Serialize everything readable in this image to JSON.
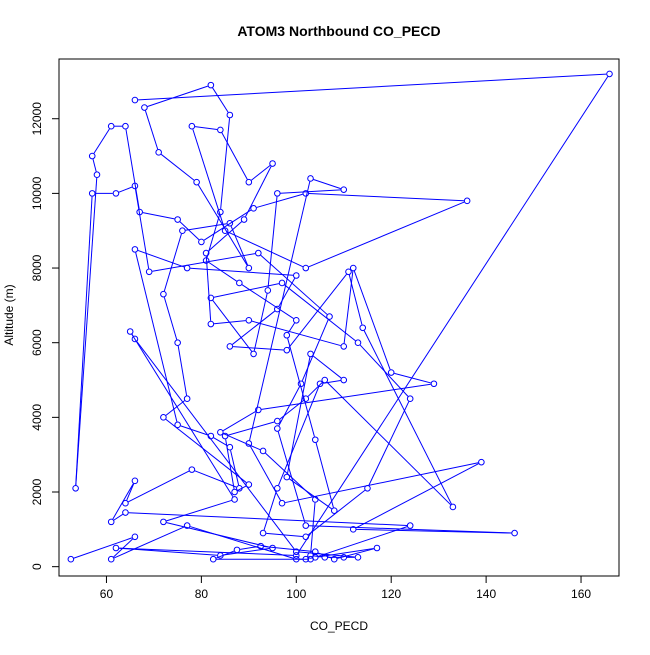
{
  "chart_data": {
    "type": "line",
    "title": "ATOM3 Northbound CO_PECD",
    "xlabel": "CO_PECD",
    "ylabel": "Altitude (m)",
    "xlim": [
      50,
      168
    ],
    "ylim": [
      -250,
      13600
    ],
    "x_ticks": [
      60,
      80,
      100,
      120,
      140,
      160
    ],
    "y_ticks": [
      0,
      2000,
      4000,
      6000,
      8000,
      10000,
      12000
    ],
    "grid": false,
    "legend": "none",
    "color": "#0000ff",
    "marker": "open-circle",
    "series": [
      {
        "points": [
          [
            52.5,
            200
          ],
          [
            66,
            800
          ],
          [
            61,
            200
          ],
          [
            77,
            1100
          ],
          [
            100,
            200
          ],
          [
            102,
            200
          ],
          [
            103,
            200
          ],
          [
            82.5,
            200
          ],
          [
            87.5,
            450
          ],
          [
            92.5,
            550
          ],
          [
            104,
            400
          ],
          [
            108,
            200
          ],
          [
            117,
            500
          ],
          [
            104,
            250
          ],
          [
            124,
            1100
          ],
          [
            64,
            1450
          ],
          [
            61,
            1200
          ],
          [
            66,
            2300
          ],
          [
            64,
            1700
          ],
          [
            78,
            2600
          ],
          [
            88,
            2100
          ],
          [
            86,
            3200
          ],
          [
            82,
            3500
          ],
          [
            75,
            3800
          ],
          [
            66,
            8500
          ],
          [
            77,
            8000
          ],
          [
            100,
            7800
          ],
          [
            96,
            6900
          ],
          [
            86,
            5900
          ],
          [
            98,
            5800
          ],
          [
            111,
            7900
          ],
          [
            114,
            6400
          ],
          [
            133,
            1600
          ],
          [
            106,
            5000
          ],
          [
            102,
            4500
          ],
          [
            96,
            3900
          ],
          [
            85,
            3500
          ],
          [
            87,
            2000
          ],
          [
            90,
            2200
          ],
          [
            72,
            4000
          ],
          [
            77,
            4500
          ],
          [
            75,
            6000
          ],
          [
            72,
            7300
          ],
          [
            76,
            9000
          ],
          [
            86,
            9200
          ],
          [
            90,
            8000
          ],
          [
            79,
            10300
          ],
          [
            71,
            11100
          ],
          [
            68,
            12300
          ],
          [
            82,
            12900
          ],
          [
            86,
            12100
          ],
          [
            84,
            9500
          ],
          [
            81,
            8200
          ],
          [
            88,
            7600
          ],
          [
            100,
            6600
          ],
          [
            98,
            6200
          ],
          [
            104,
            3400
          ],
          [
            108,
            1500
          ],
          [
            98,
            2400
          ],
          [
            103,
            5700
          ],
          [
            110,
            5000
          ],
          [
            105,
            4900
          ],
          [
            96,
            2100
          ],
          [
            93,
            900
          ],
          [
            102,
            800
          ],
          [
            115,
            2100
          ],
          [
            124,
            4500
          ],
          [
            113,
            6000
          ],
          [
            97,
            7600
          ],
          [
            82,
            7200
          ],
          [
            91,
            5700
          ],
          [
            94,
            7400
          ],
          [
            96,
            10000
          ],
          [
            110,
            10100
          ],
          [
            103,
            10400
          ],
          [
            90,
            3300
          ],
          [
            97,
            1700
          ],
          [
            139,
            2800
          ],
          [
            112,
            1000
          ],
          [
            146,
            900
          ],
          [
            102,
            1100
          ],
          [
            96,
            3700
          ],
          [
            101,
            4900
          ],
          [
            107,
            6700
          ],
          [
            92,
            8400
          ],
          [
            69,
            7900
          ],
          [
            66,
            10200
          ],
          [
            62,
            10000
          ],
          [
            57,
            10000
          ],
          [
            53.5,
            2100
          ],
          [
            58,
            10500
          ],
          [
            57,
            11000
          ],
          [
            61,
            11800
          ],
          [
            64,
            11800
          ],
          [
            67,
            9500
          ],
          [
            75,
            9300
          ],
          [
            80,
            8700
          ],
          [
            91,
            9600
          ],
          [
            102,
            10000
          ],
          [
            136,
            9800
          ],
          [
            102,
            8000
          ],
          [
            85,
            9000
          ],
          [
            78,
            11800
          ],
          [
            84,
            11700
          ],
          [
            90,
            10300
          ],
          [
            95,
            10800
          ],
          [
            89,
            9300
          ],
          [
            81,
            8400
          ],
          [
            82,
            6500
          ],
          [
            90,
            6600
          ],
          [
            110,
            5900
          ],
          [
            112,
            8000
          ],
          [
            120,
            5200
          ],
          [
            129,
            4900
          ],
          [
            92,
            4200
          ],
          [
            84,
            3600
          ],
          [
            93,
            3100
          ],
          [
            104,
            1800
          ],
          [
            103,
            300
          ],
          [
            106,
            250
          ],
          [
            110,
            250
          ],
          [
            113,
            250
          ],
          [
            100,
            400
          ],
          [
            66,
            6100
          ],
          [
            65,
            6300
          ],
          [
            87,
            1800
          ],
          [
            72,
            1200
          ],
          [
            95,
            500
          ],
          [
            84,
            300
          ],
          [
            62,
            500
          ],
          [
            100,
            300
          ],
          [
            166,
            13200
          ],
          [
            66,
            12500
          ]
        ]
      }
    ]
  }
}
